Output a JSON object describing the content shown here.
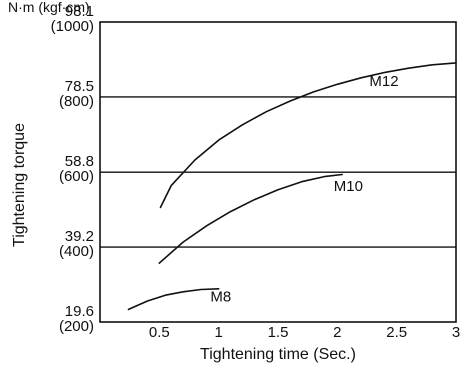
{
  "chart_data": {
    "type": "line",
    "title": "",
    "xlabel": "Tightening time (Sec.)",
    "ylabel": "Tightening torque",
    "ylabel_unit": "N·m (kgf·cm)",
    "xlim": [
      0,
      3
    ],
    "ylim": [
      19.6,
      98.1
    ],
    "x_ticks": [
      {
        "value": 0.5,
        "label": "0.5"
      },
      {
        "value": 1,
        "label": "1"
      },
      {
        "value": 1.5,
        "label": "1.5"
      },
      {
        "value": 2,
        "label": "2"
      },
      {
        "value": 2.5,
        "label": "2.5"
      },
      {
        "value": 3,
        "label": "3"
      }
    ],
    "y_ticks": [
      {
        "value": 19.6,
        "label": "19.6",
        "sublabel": "(200)"
      },
      {
        "value": 39.2,
        "label": "39.2",
        "sublabel": "(400)"
      },
      {
        "value": 58.8,
        "label": "58.8",
        "sublabel": "(600)"
      },
      {
        "value": 78.5,
        "label": "78.5",
        "sublabel": "(800)"
      },
      {
        "value": 98.1,
        "label": "98.1",
        "sublabel": "(1000)"
      }
    ],
    "gridlines_y": [
      39.2,
      58.8,
      78.5
    ],
    "series": [
      {
        "name": "M8",
        "x": [
          0.24,
          0.4,
          0.55,
          0.7,
          0.85,
          1.0
        ],
        "y": [
          22.9,
          25.1,
          26.6,
          27.5,
          28.1,
          28.3
        ]
      },
      {
        "name": "M10",
        "x": [
          0.5,
          0.7,
          0.9,
          1.1,
          1.3,
          1.5,
          1.7,
          1.9,
          2.04
        ],
        "y": [
          35.0,
          40.5,
          44.8,
          48.5,
          51.6,
          54.2,
          56.3,
          57.7,
          58.2
        ]
      },
      {
        "name": "M12",
        "x": [
          0.51,
          0.6,
          0.8,
          1.0,
          1.2,
          1.4,
          1.6,
          1.8,
          2.0,
          2.2,
          2.4,
          2.6,
          2.8,
          3.0
        ],
        "y": [
          49.6,
          55.3,
          62.0,
          67.2,
          71.2,
          74.6,
          77.4,
          79.8,
          81.8,
          83.5,
          84.9,
          86.0,
          86.9,
          87.4
        ]
      }
    ],
    "series_label_anchor": [
      {
        "name": "M8",
        "x": 0.93,
        "y": 24.9
      },
      {
        "name": "M10",
        "x": 1.97,
        "y": 53.9
      },
      {
        "name": "M12",
        "x": 2.27,
        "y": 81.3
      }
    ]
  }
}
